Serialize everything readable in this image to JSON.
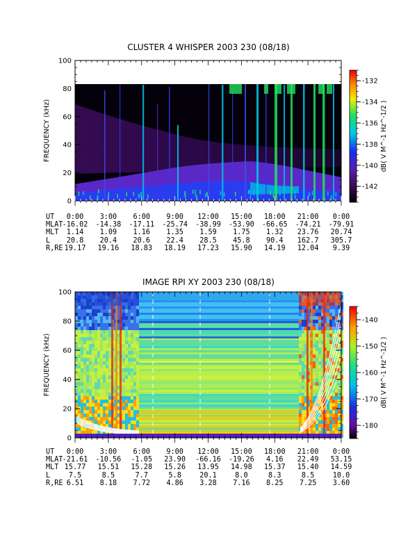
{
  "chart_data": [
    {
      "type": "heatmap",
      "title": "CLUSTER 4 WHISPER 2003 230 (08/18)",
      "ylabel": "FREQUENCY (kHz)",
      "ylim": [
        0,
        100
      ],
      "yticks": [
        "0",
        "20",
        "40",
        "60",
        "80",
        "100"
      ],
      "colorbar": {
        "label": "dB( V M^-1 Hz^-1/2 )",
        "ticks": [
          "-132",
          "-134",
          "-136",
          "-138",
          "-140",
          "-142"
        ],
        "range": [
          -143.5,
          -131
        ]
      },
      "ephemeris": [
        {
          "label": "UT",
          "values": [
            "0:00",
            "3:00",
            "6:00",
            "9:00",
            "12:00",
            "15:00",
            "18:00",
            "21:00",
            "0:00"
          ]
        },
        {
          "label": "MLAT",
          "values": [
            "-16.02",
            "-14.38",
            "-17.11",
            "-25.74",
            "-38.99",
            "-53.90",
            "-66.65",
            "-74.21",
            "-79.91"
          ]
        },
        {
          "label": "MLT",
          "values": [
            "1.14",
            "1.09",
            "1.16",
            "1.35",
            "1.59",
            "1.75",
            "1.32",
            "23.76",
            "20.74"
          ]
        },
        {
          "label": "L",
          "values": [
            "20.8",
            "20.4",
            "20.6",
            "22.4",
            "28.5",
            "45.8",
            "90.4",
            "162.7",
            "305.7"
          ]
        },
        {
          "label": "R,RE",
          "values": [
            "19.17",
            "19.16",
            "18.83",
            "18.19",
            "17.23",
            "15.90",
            "14.19",
            "12.04",
            "9.39"
          ]
        }
      ]
    },
    {
      "type": "heatmap",
      "title": "IMAGE RPI XY 2003 230 (08/18)",
      "ylabel": "FREQUENCY (kHz)",
      "ylim": [
        0,
        100
      ],
      "yticks": [
        "0",
        "20",
        "40",
        "60",
        "80",
        "100"
      ],
      "colorbar": {
        "label": "dB( V M^-1 Hz^-1/2 )",
        "ticks": [
          "-140",
          "-150",
          "-160",
          "-170",
          "-180"
        ],
        "range": [
          -185,
          -135
        ]
      },
      "ephemeris": [
        {
          "label": "UT",
          "values": [
            "0:00",
            "3:00",
            "6:00",
            "9:00",
            "12:00",
            "15:00",
            "18:00",
            "21:00",
            "0:00"
          ]
        },
        {
          "label": "MLAT",
          "values": [
            "-21.61",
            "-10.56",
            "-1.05",
            "23.90",
            "-66.16",
            "-19.26",
            "4.16",
            "22.49",
            "53.15"
          ]
        },
        {
          "label": "MLT",
          "values": [
            "15.77",
            "15.51",
            "15.28",
            "15.26",
            "13.95",
            "14.98",
            "15.37",
            "15.40",
            "14.59"
          ]
        },
        {
          "label": "L",
          "values": [
            "7.5",
            "8.5",
            "7.7",
            "5.8",
            "20.1",
            "8.0",
            "8.3",
            "8.5",
            "10.0"
          ]
        },
        {
          "label": "R,RE",
          "values": [
            "6.51",
            "8.18",
            "7.72",
            "4.86",
            "3.28",
            "7.16",
            "8.25",
            "7.25",
            "3.60"
          ]
        }
      ]
    }
  ]
}
